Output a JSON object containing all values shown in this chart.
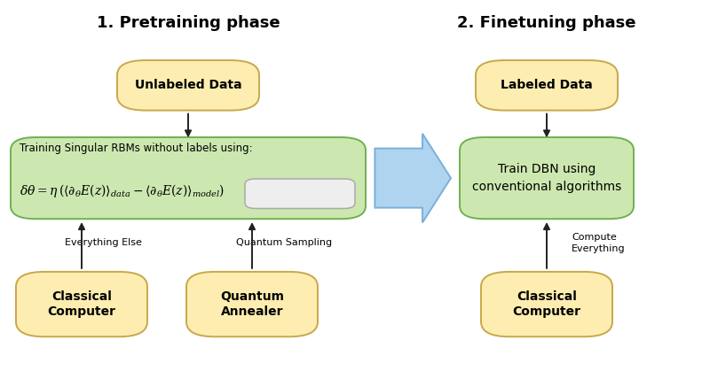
{
  "fig_width": 8.0,
  "fig_height": 4.19,
  "dpi": 100,
  "bg_color": "#ffffff",
  "yellow_face": "#fdedb0",
  "yellow_edge": "#c8a84b",
  "green_face": "#cce8b0",
  "green_edge": "#70b050",
  "arrow_color": "#222222",
  "big_arrow_face": "#aed4f0",
  "big_arrow_edge": "#7aafda",
  "highlight_face": "#eeeeee",
  "highlight_edge": "#aaaaaa",
  "title1": "1. Pretraining phase",
  "title2": "2. Finetuning phase",
  "unlabeled": "Unlabeled Data",
  "labeled": "Labeled Data",
  "rbm_label": "Training Singular RBMs without labels using:",
  "dbn_label": "Train DBN using\nconventional algorithms",
  "classical1": "Classical\nComputer",
  "quantum": "Quantum\nAnnealer",
  "classical2": "Classical\nComputer",
  "lbl_everything": "Everything Else",
  "lbl_quantum": "Quantum Sampling",
  "lbl_compute": "Compute\nEverything",
  "formula": "$\\delta\\theta = \\eta\\,(\\langle\\partial_\\theta E(z)\\rangle_{data} - \\langle\\partial_\\theta E(z)\\rangle_{model})$"
}
